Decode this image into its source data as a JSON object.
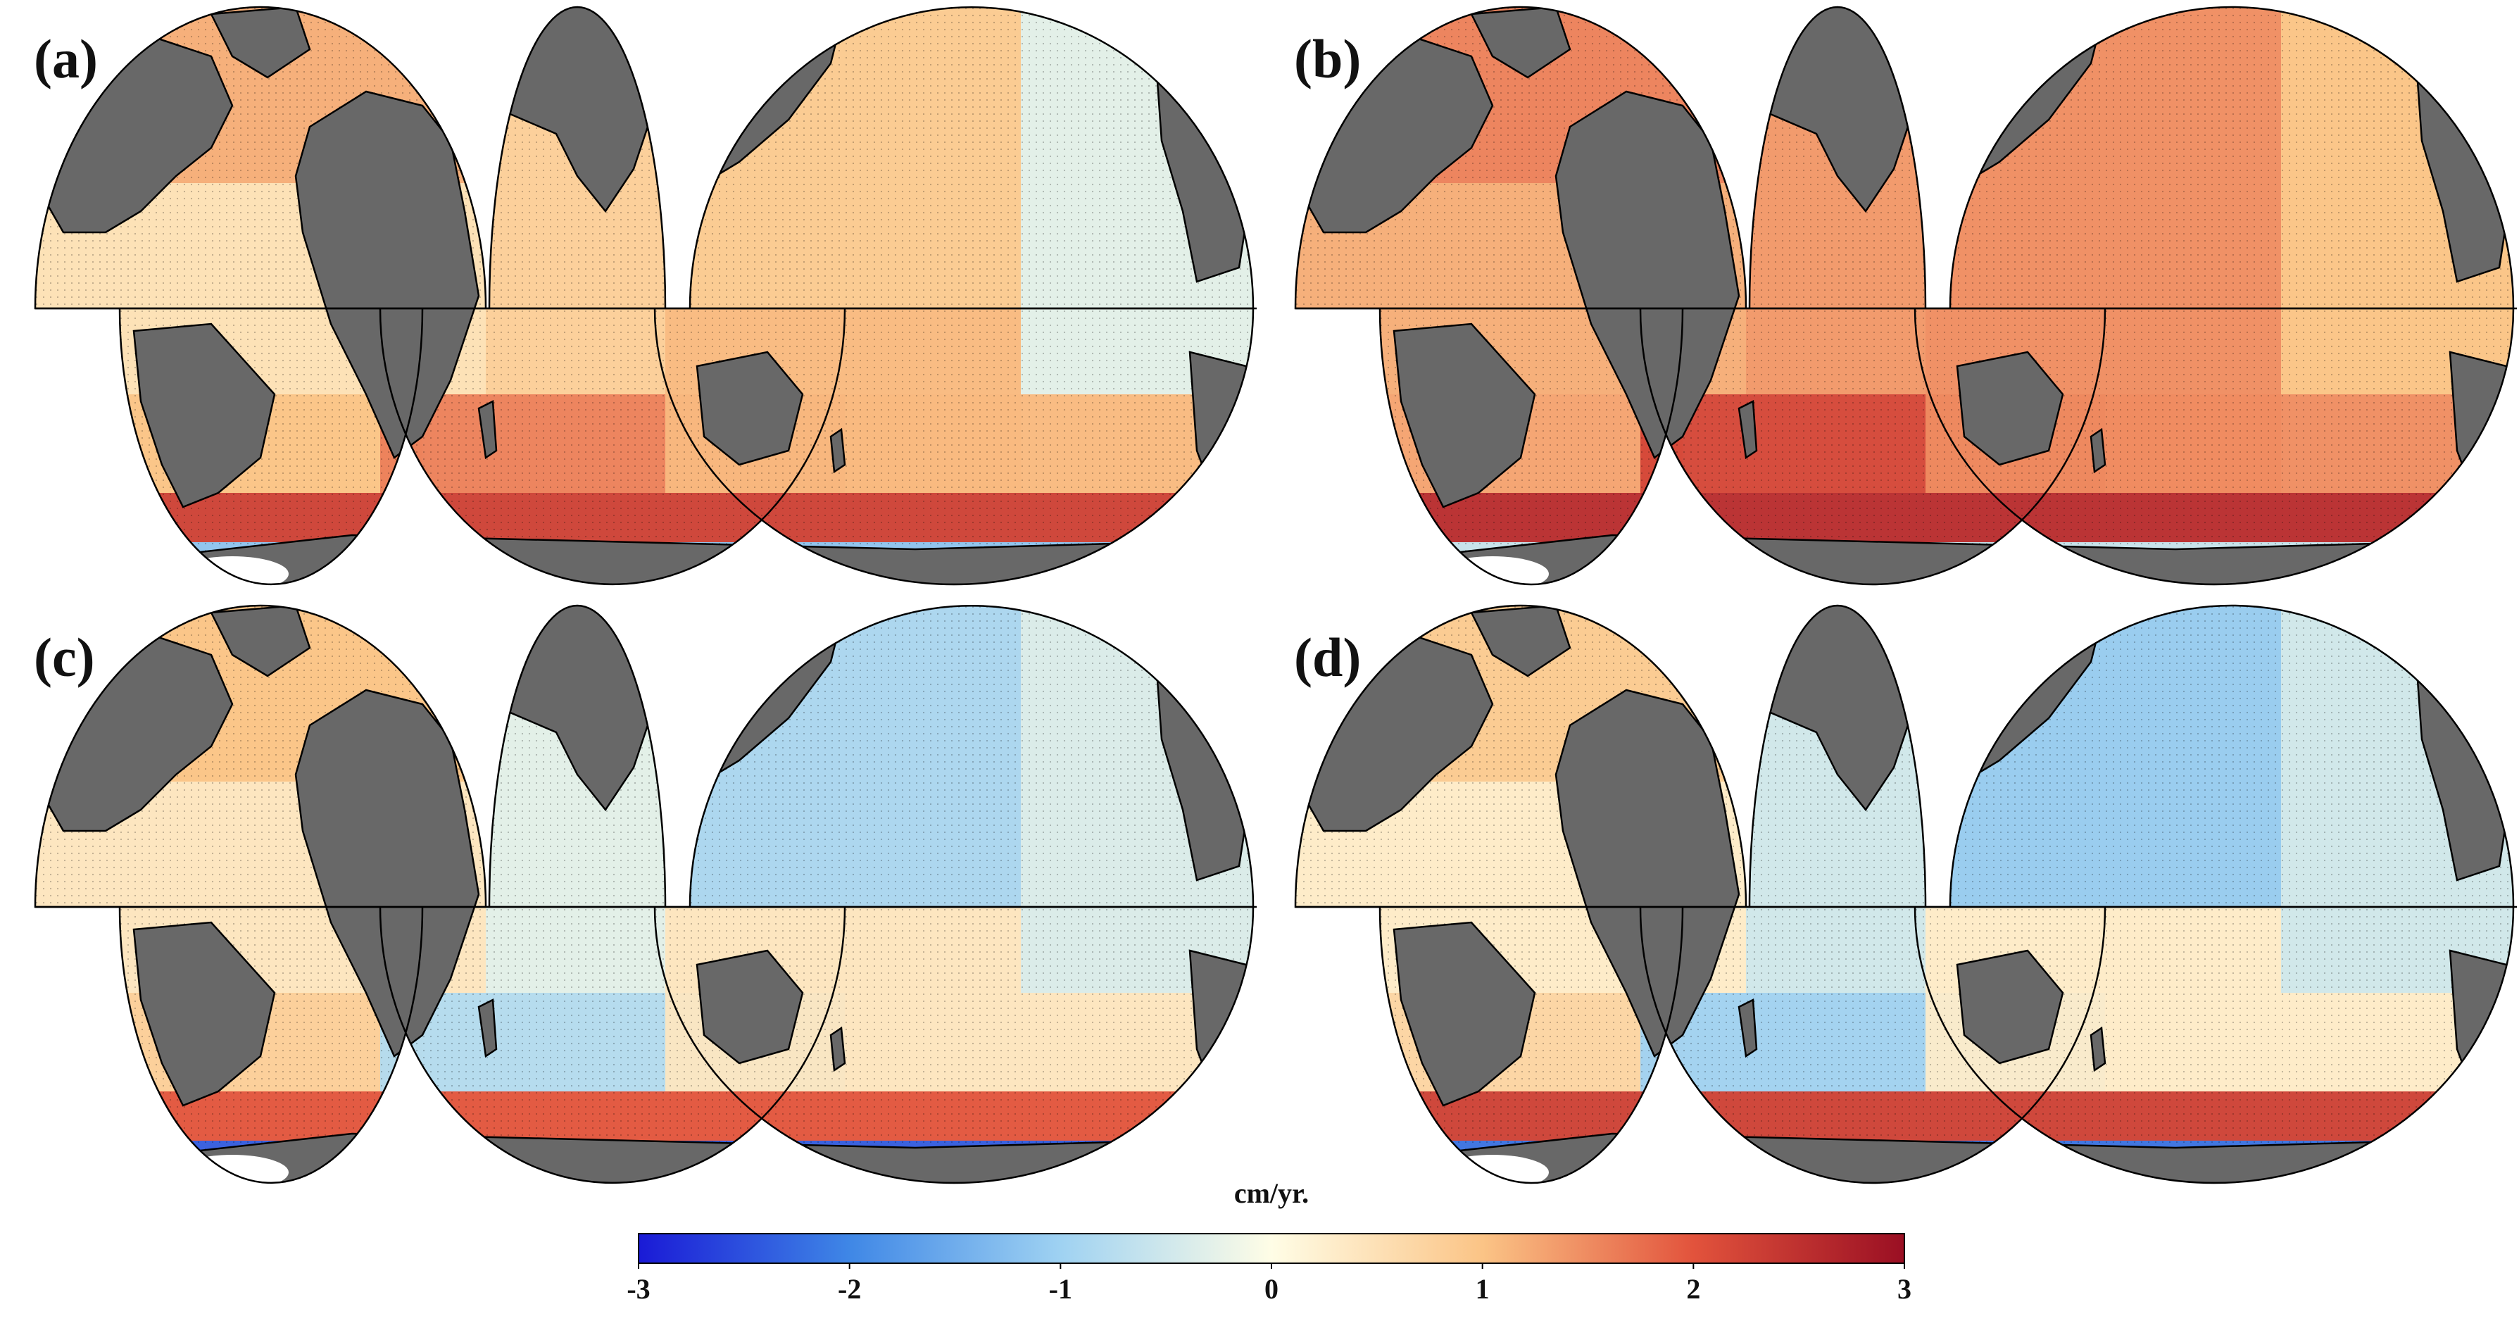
{
  "figure": {
    "panels": [
      {
        "label": "(a)",
        "id": "a",
        "regions": {
          "north_atlantic": 1.2,
          "tropical_atlantic": 0.5,
          "south_atlantic": 1.0,
          "north_indian": 0.8,
          "south_indian": 1.6,
          "north_pacific": 0.9,
          "east_pacific": -0.3,
          "south_pacific": 1.1,
          "southern_ocean": 2.3,
          "antarctic_margin": -1.2
        }
      },
      {
        "label": "(b)",
        "id": "b",
        "regions": {
          "north_atlantic": 1.6,
          "tropical_atlantic": 1.2,
          "south_atlantic": 1.3,
          "north_indian": 1.4,
          "south_indian": 2.2,
          "north_pacific": 1.5,
          "east_pacific": 1.0,
          "south_pacific": 1.5,
          "southern_ocean": 2.6,
          "antarctic_margin": -0.6
        }
      },
      {
        "label": "(c)",
        "id": "c",
        "regions": {
          "north_atlantic": 1.0,
          "tropical_atlantic": 0.4,
          "south_atlantic": 0.8,
          "north_indian": -0.3,
          "south_indian": -0.8,
          "north_pacific": -0.9,
          "east_pacific": -0.4,
          "south_pacific": 0.4,
          "southern_ocean": 2.0,
          "antarctic_margin": -2.4
        }
      },
      {
        "label": "(d)",
        "id": "d",
        "regions": {
          "north_atlantic": 0.9,
          "tropical_atlantic": 0.3,
          "south_atlantic": 0.7,
          "north_indian": -0.5,
          "south_indian": -1.0,
          "north_pacific": -1.1,
          "east_pacific": -0.5,
          "south_pacific": 0.3,
          "southern_ocean": 2.3,
          "antarctic_margin": -2.2
        }
      }
    ],
    "colorbar": {
      "title": "cm/yr.",
      "min": -3,
      "max": 3,
      "ticks": [
        "-3",
        "-2",
        "-1",
        "0",
        "1",
        "2",
        "3"
      ],
      "stops": [
        "#1a1ad6",
        "#3f87e6",
        "#9fd2f2",
        "#fffde6",
        "#fbc486",
        "#e2533c",
        "#9a0f23"
      ]
    },
    "colors": {
      "land": "#686868",
      "coast": "#000000",
      "ice": "#ffffff",
      "equator": "#000000"
    }
  }
}
